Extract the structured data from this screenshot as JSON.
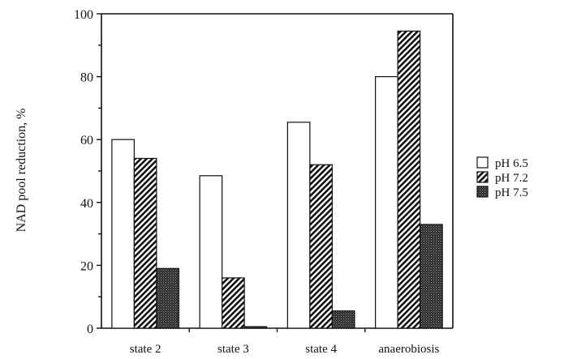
{
  "chart_data": {
    "type": "bar",
    "title": "",
    "xlabel": "",
    "ylabel": "NAD pool reduction, %",
    "ylim": [
      0,
      100
    ],
    "yticks": [
      0,
      20,
      40,
      60,
      80,
      100
    ],
    "categories": [
      "state 2",
      "state 3",
      "state 4",
      "anaerobiosis"
    ],
    "series": [
      {
        "name": "pH 6.5",
        "values": [
          60,
          48.5,
          65.5,
          80
        ],
        "pattern": "white"
      },
      {
        "name": "pH 7.2",
        "values": [
          54,
          16,
          52,
          94.5
        ],
        "pattern": "hatched"
      },
      {
        "name": "pH 7.5",
        "values": [
          19,
          0.5,
          5.5,
          33
        ],
        "pattern": "dark-stipple"
      }
    ],
    "legend_position": "right",
    "grid": false
  }
}
